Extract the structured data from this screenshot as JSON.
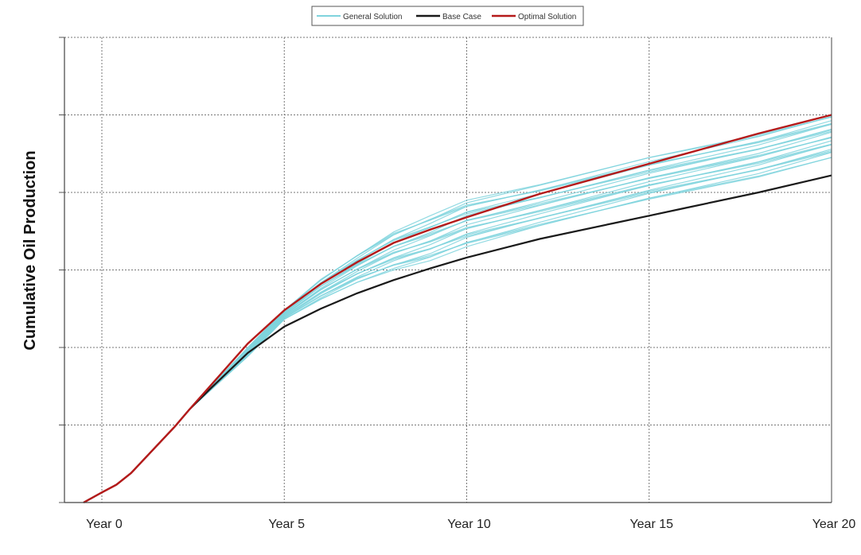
{
  "chart_data": {
    "type": "line",
    "title": "",
    "xlabel": "",
    "ylabel": "Cumulative Oil Production",
    "x_ticks": [
      {
        "value": 0,
        "label": "Year 0"
      },
      {
        "value": 5,
        "label": "Year 5"
      },
      {
        "value": 10,
        "label": "Year 10"
      },
      {
        "value": 15,
        "label": "Year 15"
      },
      {
        "value": 20,
        "label": "Year 20"
      }
    ],
    "xlim": [
      -1,
      20
    ],
    "ylim": [
      0,
      6
    ],
    "y_ticks": [
      0,
      1,
      2,
      3,
      4,
      5,
      6
    ],
    "y_tick_labels_shown": false,
    "grid": true,
    "legend_placement": "top-center",
    "colors": {
      "general": "#7fd3dd",
      "base": "#1a1a1a",
      "optimal": "#b51a1a"
    },
    "series": [
      {
        "name": "General Solution",
        "style": "ensemble",
        "ensemble_count": 24,
        "upper_envelope": {
          "x": [
            2.4,
            4,
            5,
            6,
            7,
            8,
            9,
            10,
            12,
            15,
            18,
            20
          ],
          "y": [
            1.2,
            2.0,
            2.48,
            2.88,
            3.2,
            3.5,
            3.7,
            3.9,
            4.1,
            4.45,
            4.75,
            5.0
          ]
        },
        "lower_envelope": {
          "x": [
            2.4,
            4,
            5,
            6,
            7,
            8,
            9,
            10,
            12,
            15,
            18,
            20
          ],
          "y": [
            1.2,
            1.88,
            2.36,
            2.62,
            2.84,
            3.0,
            3.12,
            3.3,
            3.55,
            3.9,
            4.2,
            4.45
          ]
        }
      },
      {
        "name": "Base Case",
        "x": [
          -0.5,
          0,
          0.4,
          0.8,
          1.4,
          2,
          2.4,
          3,
          4,
          5,
          6,
          7,
          8,
          9,
          10,
          12,
          14,
          15,
          16,
          18,
          20
        ],
        "y": [
          0,
          0.13,
          0.23,
          0.38,
          0.68,
          0.98,
          1.2,
          1.48,
          1.93,
          2.27,
          2.5,
          2.7,
          2.87,
          3.02,
          3.16,
          3.4,
          3.6,
          3.7,
          3.8,
          4.0,
          4.22
        ]
      },
      {
        "name": "Optimal Solution",
        "x": [
          -0.5,
          0,
          0.4,
          0.8,
          1.4,
          2,
          2.4,
          3,
          4,
          5,
          6,
          7,
          8,
          9,
          10,
          12,
          14,
          15,
          16,
          18,
          20
        ],
        "y": [
          0,
          0.13,
          0.23,
          0.38,
          0.68,
          0.98,
          1.2,
          1.52,
          2.05,
          2.48,
          2.82,
          3.1,
          3.35,
          3.52,
          3.68,
          3.98,
          4.24,
          4.37,
          4.5,
          4.76,
          5.0
        ]
      }
    ]
  }
}
